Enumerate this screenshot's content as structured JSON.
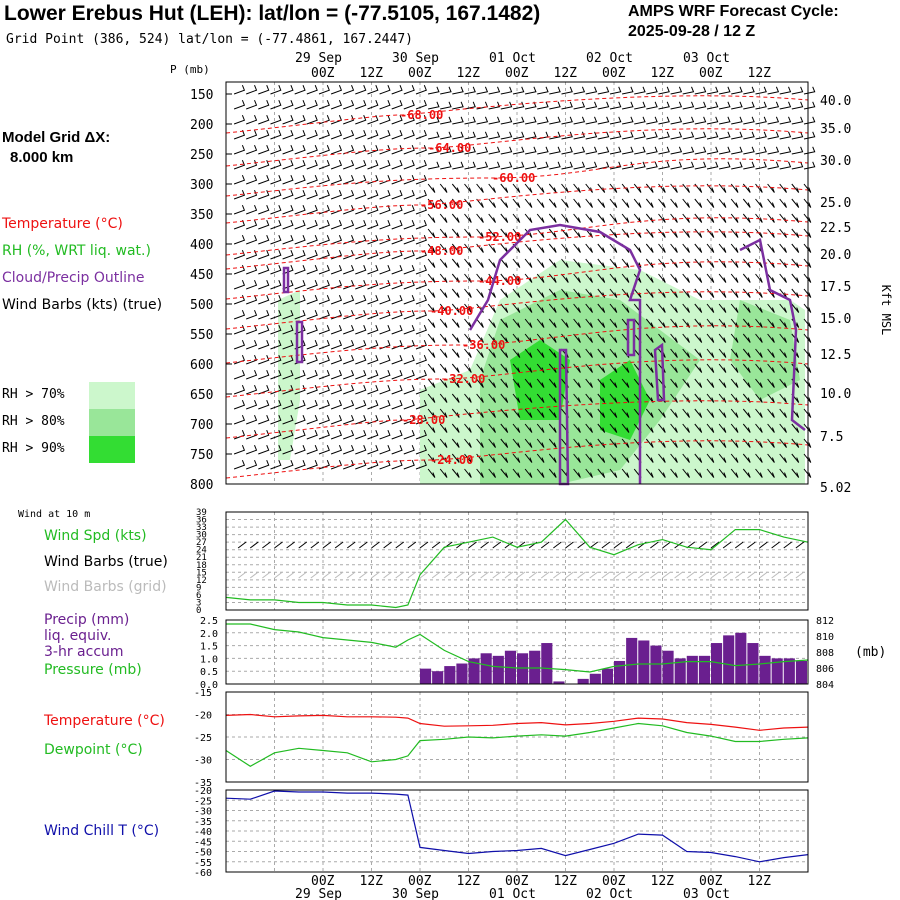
{
  "header": {
    "title": "Lower Erebus Hut (LEH):  lat/lon = (-77.5105, 167.1482)",
    "subtitle": "Grid Point (386, 524) lat/lon = (-77.4861, 167.2447)",
    "cycle_line1": "AMPS WRF Forecast Cycle:",
    "cycle_line2": "2025-09-28 / 12  Z"
  },
  "model_grid": {
    "line1": "Model Grid ΔX:",
    "line2": "8.000 km"
  },
  "legend_upper": {
    "temperature": "Temperature (°C)",
    "rh": "RH (%, WRT liq. wat.)",
    "cloud": "Cloud/Precip Outline",
    "wind": "Wind Barbs (kts) (true)",
    "rh70": "RH > 70%",
    "rh80": "RH > 80%",
    "rh90": "RH > 90%"
  },
  "colors": {
    "temperature": "#ee1111",
    "rh70": "#ccf7cc",
    "rh80": "#99e699",
    "rh90": "#33dd33",
    "cloud": "#7b2fa0",
    "wind_speed": "#22bb22",
    "precip": "#6a1f8f",
    "pressure": "#22bb22",
    "dewpoint": "#22bb22",
    "wind_chill": "#1010aa",
    "grid": "#888888"
  },
  "time_axis": {
    "top_dates": [
      "29 Sep",
      "30 Sep",
      "01 Oct",
      "02 Oct",
      "03 Oct"
    ],
    "hour_labels": [
      "00Z",
      "12Z",
      "00Z",
      "12Z",
      "00Z",
      "12Z",
      "00Z",
      "12Z",
      "00Z",
      "12Z"
    ],
    "bottom_hour_labels": [
      "00Z",
      "12Z",
      "00Z",
      "12Z",
      "00Z",
      "12Z",
      "00Z",
      "12Z",
      "00Z",
      "12Z"
    ],
    "bottom_dates": [
      "29 Sep",
      "30 Sep",
      "01 Oct",
      "02 Oct",
      "03 Oct"
    ]
  },
  "chart_data": [
    {
      "type": "heatmap",
      "name": "cross-section",
      "ylabel": "P (mb)",
      "ylabel_right": "Kft MSL",
      "pressure_ticks": [
        "150",
        "200",
        "250",
        "300",
        "350",
        "400",
        "450",
        "500",
        "550",
        "600",
        "650",
        "700",
        "750",
        "800"
      ],
      "height_ticks": [
        "40.0",
        "35.0",
        "30.0",
        "25.0",
        "22.5",
        "20.0",
        "17.5",
        "15.0",
        "12.5",
        "10.0",
        "7.5",
        "5.02"
      ],
      "isotherm_labels": [
        "-68.00",
        "-64.00",
        "-60.00",
        "-56.00",
        "-52.00",
        "-48.00",
        "-44.00",
        "-40.00",
        "-36.00",
        "-32.00",
        "-28.00",
        "-24.00"
      ]
    },
    {
      "type": "line",
      "name": "wind-10m",
      "panel_label": "Wind at 10 m",
      "legend": [
        "Wind Spd (kts)",
        "Wind Barbs (true)",
        "Wind Barbs (grid)"
      ],
      "yticks": [
        "39",
        "36",
        "33",
        "30",
        "27",
        "24",
        "21",
        "18",
        "15",
        "12",
        "9",
        "6",
        "3",
        "0"
      ],
      "ylim": [
        0,
        39
      ],
      "hours": [
        0,
        6,
        12,
        18,
        24,
        30,
        36,
        42,
        45,
        48,
        54,
        60,
        66,
        72,
        78,
        84,
        90,
        96,
        102,
        108,
        114,
        120,
        126,
        132,
        138,
        144
      ],
      "values": [
        5,
        4,
        4,
        3,
        3,
        2,
        2,
        1,
        2,
        14,
        25,
        27,
        29,
        25,
        27,
        36,
        25,
        22,
        26,
        28,
        25,
        24,
        32,
        32,
        29,
        27
      ]
    },
    {
      "type": "bar",
      "name": "precip-pressure",
      "legend": [
        "Precip (mm)",
        "liq. equiv.",
        "3-hr accum",
        "Pressure (mb)"
      ],
      "yticks_left": [
        "2.5",
        "2.0",
        "1.5",
        "1.0",
        "0.5",
        "0.0"
      ],
      "yticks_right": [
        "812",
        "810",
        "808",
        "806",
        "804"
      ],
      "ylabel_right": "(mb)",
      "precip_hours": [
        48,
        51,
        54,
        57,
        60,
        63,
        66,
        69,
        72,
        75,
        78,
        81,
        84,
        87,
        90,
        93,
        96,
        99,
        102,
        105,
        108,
        111,
        114,
        117,
        120,
        123,
        126,
        129,
        132,
        135,
        138,
        141
      ],
      "precip_values": [
        0.6,
        0.5,
        0.7,
        0.8,
        1.0,
        1.2,
        1.1,
        1.3,
        1.2,
        1.3,
        1.6,
        0.1,
        0.0,
        0.2,
        0.4,
        0.6,
        0.9,
        1.8,
        1.7,
        1.5,
        1.3,
        1.0,
        1.1,
        1.1,
        1.6,
        1.9,
        2.0,
        1.6,
        1.1,
        1.0,
        1.0,
        0.9
      ],
      "pressure_hours": [
        0,
        6,
        12,
        18,
        24,
        30,
        36,
        42,
        45,
        48,
        54,
        60,
        66,
        72,
        78,
        84,
        90,
        96,
        102,
        108,
        114,
        120,
        126,
        132,
        138,
        144
      ],
      "pressure_values": [
        811.5,
        811.5,
        810.8,
        810.5,
        809.8,
        809.5,
        809.2,
        808.6,
        809.5,
        810.2,
        808.2,
        806.8,
        806.2,
        806.0,
        806.0,
        805.8,
        805.5,
        806.2,
        806.5,
        806.5,
        806.8,
        806.8,
        806.3,
        806.5,
        806.8,
        807.0
      ],
      "ylim_left": [
        0,
        2.5
      ],
      "ylim_right": [
        804,
        812
      ]
    },
    {
      "type": "line",
      "name": "temp-dewpoint",
      "legend": [
        "Temperature (°C)",
        "Dewpoint (°C)"
      ],
      "yticks": [
        "-15",
        "-20",
        "-25",
        "-30",
        "-35"
      ],
      "ylim": [
        -35,
        -15
      ],
      "hours": [
        0,
        6,
        12,
        18,
        24,
        30,
        36,
        42,
        45,
        48,
        54,
        60,
        66,
        72,
        78,
        84,
        90,
        96,
        102,
        108,
        114,
        120,
        126,
        132,
        138,
        144
      ],
      "temperature": [
        -20.2,
        -20.0,
        -20.5,
        -20.3,
        -20.2,
        -20.5,
        -20.5,
        -20.6,
        -20.8,
        -22.0,
        -22.6,
        -22.5,
        -22.4,
        -22.0,
        -21.8,
        -22.3,
        -22.0,
        -21.5,
        -20.8,
        -21.0,
        -21.8,
        -22.2,
        -22.8,
        -23.5,
        -23.0,
        -22.8
      ],
      "dewpoint": [
        -28.0,
        -31.5,
        -28.5,
        -27.5,
        -28.0,
        -28.5,
        -30.5,
        -30.0,
        -29.2,
        -25.8,
        -25.5,
        -25.0,
        -25.2,
        -24.8,
        -24.5,
        -24.8,
        -24.0,
        -23.0,
        -22.0,
        -22.5,
        -24.0,
        -24.8,
        -26.0,
        -26.0,
        -25.5,
        -25.2
      ]
    },
    {
      "type": "line",
      "name": "wind-chill",
      "legend": [
        "Wind Chill T (°C)"
      ],
      "yticks": [
        "-20",
        "-25",
        "-30",
        "-35",
        "-40",
        "-45",
        "-50",
        "-55",
        "-60"
      ],
      "ylim": [
        -60,
        -20
      ],
      "hours": [
        0,
        6,
        12,
        18,
        24,
        30,
        36,
        42,
        45,
        48,
        54,
        60,
        66,
        72,
        78,
        84,
        90,
        96,
        102,
        108,
        114,
        120,
        126,
        132,
        138,
        144
      ],
      "values": [
        -24,
        -24.5,
        -20.5,
        -21,
        -21,
        -21.5,
        -21.5,
        -22,
        -22.5,
        -48,
        -49.5,
        -51,
        -50,
        -49.5,
        -48.5,
        -52,
        -49,
        -46,
        -41.5,
        -42,
        -50,
        -50.5,
        -52.5,
        -55,
        -53,
        -51.5
      ]
    }
  ]
}
